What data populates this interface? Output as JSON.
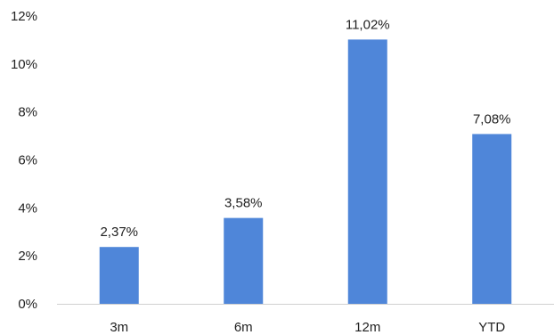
{
  "chart_data": {
    "type": "bar",
    "categories": [
      "3m",
      "6m",
      "12m",
      "YTD"
    ],
    "values": [
      2.37,
      3.58,
      11.02,
      7.08
    ],
    "data_labels": [
      "2,37%",
      "3,58%",
      "11,02%",
      "7,08%"
    ],
    "yticks": [
      0,
      2,
      4,
      6,
      8,
      10,
      12
    ],
    "ytick_labels": [
      "0%",
      "2%",
      "4%",
      "6%",
      "8%",
      "10%",
      "12%"
    ],
    "ylim": [
      0,
      12
    ],
    "grid": false,
    "legend": "none",
    "bar_color": "#4f86d9",
    "axis_color": "#d0d0d0"
  }
}
